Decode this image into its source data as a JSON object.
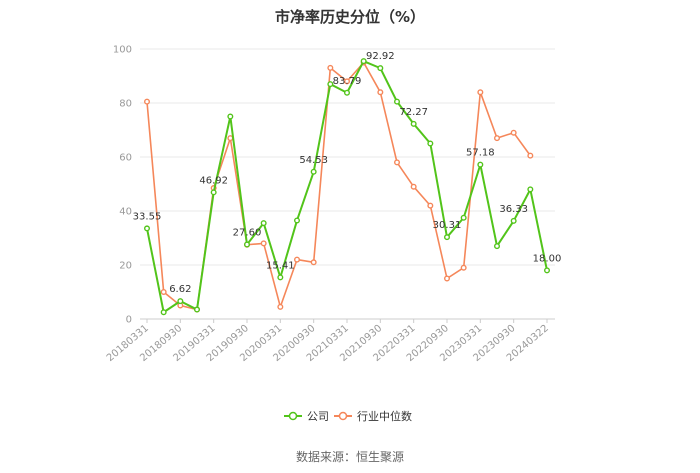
{
  "title": "市净率历史分位（%）",
  "source": "数据来源：恒生聚源",
  "colors": {
    "company": "#52c41a",
    "industry": "#f5875a",
    "grid": "#e8e8e8",
    "axis": "#cccccc"
  },
  "chart_data": {
    "type": "line",
    "title": "市净率历史分位（%）",
    "ylim": [
      0,
      100
    ],
    "yticks": [
      0,
      20,
      40,
      60,
      80,
      100
    ],
    "grid": true,
    "legend": "bottom",
    "x": [
      "20180331",
      "20180630",
      "20180930",
      "20181231",
      "20190331",
      "20190630",
      "20190930",
      "20191231",
      "20200331",
      "20200630",
      "20200930",
      "20201231",
      "20210331",
      "20210630",
      "20210930",
      "20211231",
      "20220331",
      "20220630",
      "20220930",
      "20221231",
      "20230331",
      "20230630",
      "20230930",
      "20231231",
      "20240322"
    ],
    "xtick_labels": [
      "20180331",
      "20180930",
      "20190331",
      "20190930",
      "20200331",
      "20200930",
      "20210331",
      "20210930",
      "20220331",
      "20220930",
      "20230331",
      "20230930",
      "20240322"
    ],
    "series": [
      {
        "name": "公司",
        "values": [
          33.55,
          2.5,
          6.62,
          3.5,
          46.92,
          75.0,
          27.6,
          35.5,
          15.41,
          36.5,
          54.53,
          87.0,
          83.79,
          95.5,
          92.92,
          80.5,
          72.27,
          65.0,
          30.31,
          37.5,
          57.18,
          27.0,
          36.33,
          48.0,
          18.0
        ]
      },
      {
        "name": "行业中位数",
        "values": [
          80.5,
          10.0,
          5.0,
          3.5,
          48.5,
          67.0,
          27.5,
          28.0,
          4.5,
          22.0,
          21.0,
          93.0,
          88.0,
          95.0,
          84.0,
          58.0,
          49.0,
          42.0,
          15.0,
          19.0,
          84.0,
          67.0,
          69.0,
          60.5,
          null
        ]
      }
    ],
    "data_labels": [
      {
        "index": 0,
        "text": "33.55"
      },
      {
        "index": 2,
        "text": "6.62"
      },
      {
        "index": 4,
        "text": "46.92"
      },
      {
        "index": 6,
        "text": "27.60"
      },
      {
        "index": 8,
        "text": "15.41"
      },
      {
        "index": 10,
        "text": "54.53"
      },
      {
        "index": 12,
        "text": "83.79"
      },
      {
        "index": 14,
        "text": "92.92"
      },
      {
        "index": 16,
        "text": "72.27"
      },
      {
        "index": 18,
        "text": "30.31"
      },
      {
        "index": 20,
        "text": "57.18"
      },
      {
        "index": 22,
        "text": "36.33"
      },
      {
        "index": 24,
        "text": "18.00"
      }
    ]
  }
}
